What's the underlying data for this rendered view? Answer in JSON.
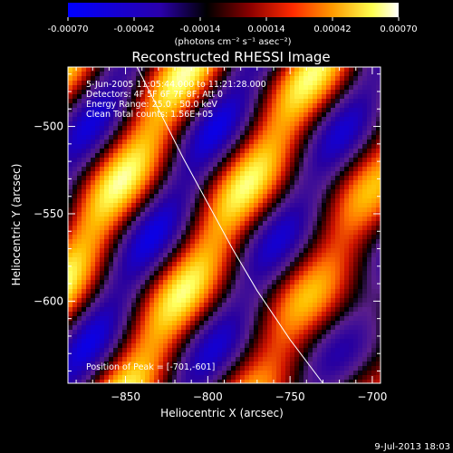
{
  "chart_data": {
    "type": "heatmap",
    "title": "Reconstructed RHESSI Image",
    "xlabel": "Heliocentric X (arcsec)",
    "ylabel": "Heliocentric Y (arcsec)",
    "xlim": [
      -885,
      -695
    ],
    "ylim": [
      -647,
      -466
    ],
    "xticks": [
      -850,
      -800,
      -750,
      -700
    ],
    "yticks": [
      -500,
      -550,
      -600
    ],
    "colorbar": {
      "min": -0.0007,
      "max": 0.0007,
      "ticks": [
        -0.0007,
        -0.00042,
        -0.00014,
        0.00014,
        0.00042,
        0.0007
      ],
      "tick_labels": [
        "-0.00070",
        "-0.00042",
        "-0.00014",
        "0.00014",
        "0.00042",
        "0.00070"
      ],
      "unit_label": "(photons cm⁻² s⁻¹ asec⁻²)",
      "palette": [
        "#0000ff",
        "#000000",
        "#b40000",
        "#ff7800",
        "#ffff64",
        "#ffffff"
      ]
    },
    "annotations": [
      "5-Jun-2005 11:05:44.000 to 11:21:28.000",
      "Detectors: 4F 5F 6F 7F 8F, Att 0",
      "Energy Range: 25.0 - 50.0 keV",
      "Clean     Total counts: 1.56E+05"
    ],
    "peak_label": "Position of Peak = [-701,-601]",
    "peak": [
      -701,
      -601
    ],
    "limb_arc": [
      [
        -843,
        -466
      ],
      [
        -830,
        -490
      ],
      [
        -815,
        -518
      ],
      [
        -800,
        -544
      ],
      [
        -785,
        -570
      ],
      [
        -770,
        -594
      ],
      [
        -750,
        -622
      ],
      [
        -730,
        -647
      ]
    ],
    "stripe_field": {
      "stripe_direction_slope": -1.7,
      "stripe_spacing_arcsec": 24,
      "note_values": "image values range from about -0.0003 (dark purple) to 0.0007 (white) along diagonal ridges"
    }
  },
  "footer": {
    "date": "9-Jul-2013 18:03"
  }
}
